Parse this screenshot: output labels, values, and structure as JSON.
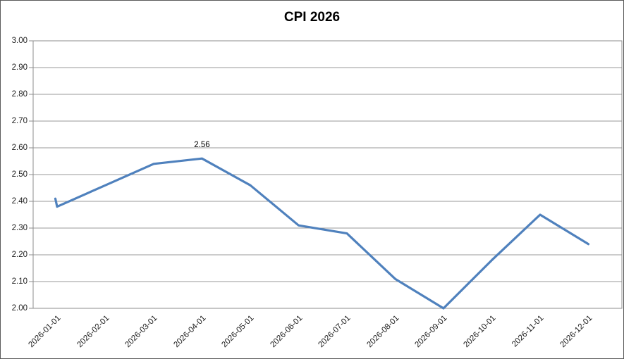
{
  "title": "CPI 2026",
  "colors": {
    "line": "#4F81BD",
    "grid": "#9a9a9a",
    "plot_border": "#8c8c8c",
    "frame_border": "#5a5a5a",
    "text": "#1a1a1a",
    "background": "#ffffff"
  },
  "annotation": {
    "x": "2026-04-01",
    "label": "2.56"
  },
  "chart_data": {
    "type": "line",
    "title": "CPI 2026",
    "x": [
      "2026-01-01",
      "2026-02-01",
      "2026-03-01",
      "2026-04-01",
      "2026-05-01",
      "2026-06-01",
      "2026-07-01",
      "2026-08-01",
      "2026-09-01",
      "2026-10-01",
      "2026-11-01",
      "2026-12-01"
    ],
    "series": [
      {
        "name": "CPI",
        "values": [
          2.38,
          2.46,
          2.54,
          2.56,
          2.46,
          2.31,
          2.28,
          2.11,
          2.0,
          2.18,
          2.35,
          2.24
        ]
      }
    ],
    "leading_tick": {
      "from": 2.41,
      "note": "tiny vertical dash at first point, line starts at 2.41 then dips to 2.38"
    },
    "annotations": [
      {
        "x": "2026-04-01",
        "value": 2.56,
        "label": "2.56"
      }
    ],
    "ylim": [
      2.0,
      3.0
    ],
    "ytick_step": 0.1,
    "ytick_labels": [
      "2.00",
      "2.10",
      "2.20",
      "2.30",
      "2.40",
      "2.50",
      "2.60",
      "2.70",
      "2.80",
      "2.90",
      "3.00"
    ],
    "grid": true,
    "legend": false,
    "x_label_rotation": 45
  }
}
